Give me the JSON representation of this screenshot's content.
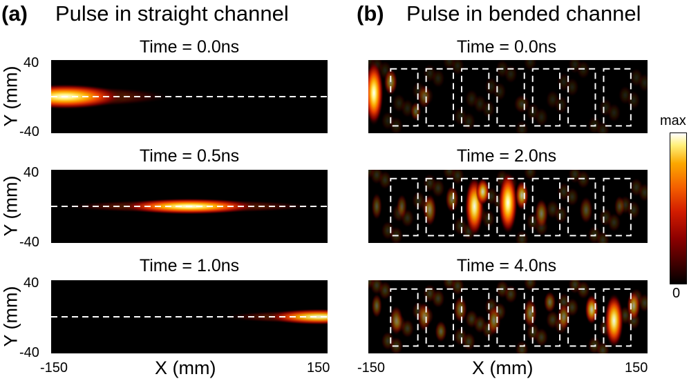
{
  "panels": {
    "a": {
      "label": "(a)",
      "title": "Pulse in straight channel",
      "subplots": [
        {
          "time": "Time = 0.0ns",
          "pulse_center": 0.05,
          "pulse_width": 0.22,
          "pulse_height": 0.11,
          "intensity": 1.0
        },
        {
          "time": "Time = 0.5ns",
          "pulse_center": 0.5,
          "pulse_width": 0.26,
          "pulse_height": 0.07,
          "intensity": 1.0
        },
        {
          "time": "Time = 1.0ns",
          "pulse_center": 0.97,
          "pulse_width": 0.2,
          "pulse_height": 0.07,
          "intensity": 0.9
        }
      ],
      "y_ticks": {
        "top": "40",
        "bottom": "-40"
      },
      "y_label": "Y (mm)",
      "x_label": "X (mm)",
      "x_ticks": {
        "left": "-150",
        "right": "150"
      }
    },
    "b": {
      "label": "(b)",
      "title": "Pulse in bended channel",
      "subplots": [
        {
          "time": "Time = 0.0ns"
        },
        {
          "time": "Time = 2.0ns"
        },
        {
          "time": "Time = 4.0ns"
        }
      ],
      "x_label": "X (mm)",
      "x_ticks": {
        "left": "-150",
        "right": "150"
      }
    }
  },
  "colorbar": {
    "max_label": "max",
    "min_label": "0",
    "colors": [
      "#000000",
      "#8c0000",
      "#d21c00",
      "#f46000",
      "#fca800",
      "#fff07a",
      "#ffffff"
    ]
  }
}
